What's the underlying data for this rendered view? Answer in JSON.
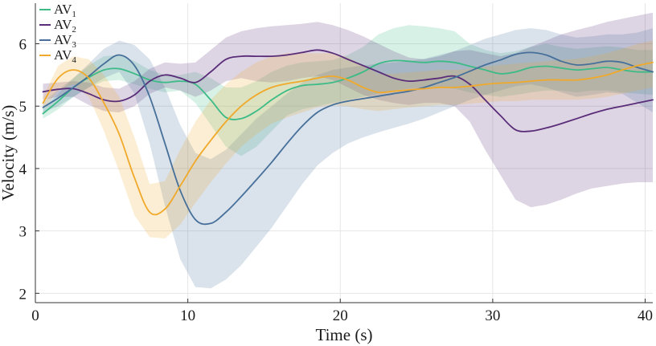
{
  "chart_data": {
    "type": "line",
    "title": "",
    "xlabel": "Time (s)",
    "ylabel": "Velocity (m/s)",
    "xlim": [
      0,
      40.5
    ],
    "ylim": [
      1.85,
      6.65
    ],
    "xticks": [
      0,
      10,
      20,
      30,
      40
    ],
    "yticks": [
      2,
      3,
      4,
      5,
      6
    ],
    "grid": true,
    "legend_position": "top-left",
    "bands": "shaded region = variability (range) around each mean trajectory",
    "series": [
      {
        "name": "AV1",
        "label_main": "AV",
        "label_sub": "1",
        "color": "#3dbb87",
        "points": [
          [
            0.5,
            4.88
          ],
          [
            1.5,
            5.08
          ],
          [
            2.5,
            5.3
          ],
          [
            3.5,
            5.46
          ],
          [
            4.5,
            5.58
          ],
          [
            5.5,
            5.6
          ],
          [
            6.5,
            5.52
          ],
          [
            7.5,
            5.42
          ],
          [
            8.5,
            5.38
          ],
          [
            9.5,
            5.4
          ],
          [
            10.5,
            5.35
          ],
          [
            11.5,
            5.1
          ],
          [
            12.5,
            4.82
          ],
          [
            13.5,
            4.8
          ],
          [
            14.5,
            4.92
          ],
          [
            15.5,
            5.1
          ],
          [
            16.5,
            5.25
          ],
          [
            17.5,
            5.33
          ],
          [
            18.5,
            5.35
          ],
          [
            19.5,
            5.38
          ],
          [
            20.5,
            5.45
          ],
          [
            21.5,
            5.55
          ],
          [
            22.5,
            5.68
          ],
          [
            23.5,
            5.73
          ],
          [
            24.5,
            5.72
          ],
          [
            25.5,
            5.7
          ],
          [
            26.5,
            5.72
          ],
          [
            27.5,
            5.7
          ],
          [
            28.5,
            5.64
          ],
          [
            29.5,
            5.58
          ],
          [
            30.5,
            5.52
          ],
          [
            31.5,
            5.55
          ],
          [
            32.5,
            5.62
          ],
          [
            33.5,
            5.64
          ],
          [
            34.5,
            5.61
          ],
          [
            35.5,
            5.58
          ],
          [
            36.5,
            5.6
          ],
          [
            37.5,
            5.62
          ],
          [
            38.5,
            5.58
          ],
          [
            39.5,
            5.55
          ],
          [
            40.5,
            5.55
          ]
        ],
        "band_lower": [
          4.8,
          4.95,
          5.15,
          5.3,
          5.4,
          5.42,
          5.35,
          5.28,
          5.22,
          5.25,
          5.05,
          4.7,
          4.35,
          4.2,
          4.35,
          4.6,
          4.85,
          4.95,
          5.0,
          5.05,
          5.1,
          5.15,
          5.2,
          5.25,
          5.28,
          5.3,
          5.3,
          5.28,
          5.22,
          5.18,
          5.15,
          5.18,
          5.22,
          5.25,
          5.25,
          5.22,
          5.25,
          5.25,
          5.22,
          5.2,
          5.18
        ],
        "band_upper": [
          4.96,
          5.2,
          5.45,
          5.65,
          5.8,
          5.82,
          5.72,
          5.58,
          5.5,
          5.5,
          5.55,
          5.45,
          5.3,
          5.3,
          5.4,
          5.55,
          5.65,
          5.7,
          5.72,
          5.74,
          5.82,
          5.95,
          6.15,
          6.25,
          6.3,
          6.28,
          6.25,
          6.2,
          6.0,
          5.9,
          5.85,
          5.88,
          5.95,
          6.0,
          5.95,
          5.92,
          5.94,
          5.96,
          5.94,
          5.9,
          5.9
        ]
      },
      {
        "name": "AV2",
        "label_main": "AV",
        "label_sub": "2",
        "color": "#5a2d79",
        "points": [
          [
            0.5,
            5.23
          ],
          [
            1.5,
            5.27
          ],
          [
            2.5,
            5.28
          ],
          [
            3.5,
            5.2
          ],
          [
            4.5,
            5.1
          ],
          [
            5.5,
            5.08
          ],
          [
            6.5,
            5.18
          ],
          [
            7.5,
            5.4
          ],
          [
            8.5,
            5.5
          ],
          [
            9.5,
            5.45
          ],
          [
            10.5,
            5.38
          ],
          [
            11.5,
            5.55
          ],
          [
            12.5,
            5.75
          ],
          [
            13.5,
            5.8
          ],
          [
            14.5,
            5.8
          ],
          [
            15.5,
            5.8
          ],
          [
            16.5,
            5.82
          ],
          [
            17.5,
            5.86
          ],
          [
            18.5,
            5.9
          ],
          [
            19.5,
            5.85
          ],
          [
            20.5,
            5.75
          ],
          [
            21.5,
            5.65
          ],
          [
            22.5,
            5.55
          ],
          [
            23.5,
            5.45
          ],
          [
            24.5,
            5.4
          ],
          [
            25.5,
            5.42
          ],
          [
            26.5,
            5.45
          ],
          [
            27.5,
            5.48
          ],
          [
            28.5,
            5.35
          ],
          [
            29.5,
            5.1
          ],
          [
            30.5,
            4.85
          ],
          [
            31.5,
            4.62
          ],
          [
            32.5,
            4.6
          ],
          [
            33.5,
            4.65
          ],
          [
            34.5,
            4.72
          ],
          [
            35.5,
            4.8
          ],
          [
            36.5,
            4.88
          ],
          [
            37.5,
            4.95
          ],
          [
            38.5,
            5.0
          ],
          [
            39.5,
            5.05
          ],
          [
            40.5,
            5.1
          ]
        ],
        "band_lower": [
          5.1,
          5.15,
          5.15,
          5.02,
          4.92,
          4.9,
          5.0,
          5.2,
          5.3,
          5.25,
          5.15,
          5.25,
          5.4,
          5.45,
          5.4,
          5.38,
          5.4,
          5.45,
          5.48,
          5.42,
          5.3,
          5.18,
          5.1,
          5.05,
          5.02,
          5.05,
          5.05,
          5.0,
          4.75,
          4.3,
          3.9,
          3.5,
          3.38,
          3.42,
          3.5,
          3.6,
          3.68,
          3.72,
          3.76,
          3.78,
          3.78
        ],
        "band_upper": [
          5.36,
          5.38,
          5.4,
          5.38,
          5.3,
          5.28,
          5.4,
          5.6,
          5.7,
          5.68,
          5.7,
          5.9,
          6.1,
          6.2,
          6.25,
          6.28,
          6.3,
          6.32,
          6.35,
          6.3,
          6.22,
          6.12,
          6.0,
          5.88,
          5.78,
          5.75,
          5.8,
          5.88,
          5.9,
          5.85,
          5.8,
          5.85,
          5.95,
          6.05,
          6.15,
          6.22,
          6.28,
          6.35,
          6.4,
          6.45,
          6.5
        ]
      },
      {
        "name": "AV3",
        "label_main": "AV",
        "label_sub": "3",
        "color": "#46709a",
        "points": [
          [
            0.5,
            4.98
          ],
          [
            1.5,
            5.13
          ],
          [
            2.5,
            5.3
          ],
          [
            3.5,
            5.48
          ],
          [
            4.5,
            5.68
          ],
          [
            5.5,
            5.82
          ],
          [
            6.5,
            5.65
          ],
          [
            7.5,
            5.15
          ],
          [
            8.5,
            4.4
          ],
          [
            9.5,
            3.65
          ],
          [
            10.5,
            3.18
          ],
          [
            11.5,
            3.12
          ],
          [
            12.5,
            3.3
          ],
          [
            13.5,
            3.55
          ],
          [
            14.5,
            3.82
          ],
          [
            15.5,
            4.1
          ],
          [
            16.5,
            4.4
          ],
          [
            17.5,
            4.68
          ],
          [
            18.5,
            4.9
          ],
          [
            19.5,
            5.02
          ],
          [
            20.5,
            5.08
          ],
          [
            21.5,
            5.12
          ],
          [
            22.5,
            5.16
          ],
          [
            23.5,
            5.2
          ],
          [
            24.5,
            5.24
          ],
          [
            25.5,
            5.3
          ],
          [
            26.5,
            5.38
          ],
          [
            27.5,
            5.46
          ],
          [
            28.5,
            5.56
          ],
          [
            29.5,
            5.66
          ],
          [
            30.5,
            5.74
          ],
          [
            31.5,
            5.83
          ],
          [
            32.5,
            5.86
          ],
          [
            33.5,
            5.82
          ],
          [
            34.5,
            5.72
          ],
          [
            35.5,
            5.66
          ],
          [
            36.5,
            5.68
          ],
          [
            37.5,
            5.72
          ],
          [
            38.5,
            5.7
          ],
          [
            39.5,
            5.62
          ],
          [
            40.5,
            5.55
          ]
        ],
        "band_lower": [
          4.9,
          5.0,
          5.15,
          5.3,
          5.45,
          5.55,
          5.2,
          4.4,
          3.4,
          2.55,
          2.1,
          2.08,
          2.22,
          2.45,
          2.75,
          3.05,
          3.4,
          3.75,
          4.05,
          4.25,
          4.4,
          4.5,
          4.58,
          4.65,
          4.72,
          4.8,
          4.9,
          5.0,
          5.1,
          5.18,
          5.25,
          5.32,
          5.35,
          5.3,
          5.22,
          5.15,
          5.18,
          5.22,
          5.2,
          5.05,
          4.9
        ],
        "band_upper": [
          5.06,
          5.26,
          5.45,
          5.68,
          5.92,
          6.05,
          5.98,
          5.75,
          5.3,
          4.7,
          4.25,
          4.15,
          4.3,
          4.55,
          4.8,
          5.0,
          5.2,
          5.38,
          5.5,
          5.58,
          5.62,
          5.65,
          5.68,
          5.7,
          5.72,
          5.76,
          5.82,
          5.88,
          5.98,
          6.08,
          6.15,
          6.22,
          6.25,
          6.22,
          6.15,
          6.1,
          6.12,
          6.15,
          6.15,
          6.18,
          6.25
        ]
      },
      {
        "name": "AV4",
        "label_main": "AV",
        "label_sub": "4",
        "color": "#f0a92a",
        "points": [
          [
            0.5,
            5.05
          ],
          [
            1.5,
            5.45
          ],
          [
            2.5,
            5.58
          ],
          [
            3.5,
            5.45
          ],
          [
            4.5,
            5.05
          ],
          [
            5.5,
            4.55
          ],
          [
            6.5,
            3.85
          ],
          [
            7.5,
            3.3
          ],
          [
            8.5,
            3.35
          ],
          [
            9.5,
            3.72
          ],
          [
            10.5,
            4.12
          ],
          [
            11.5,
            4.45
          ],
          [
            12.5,
            4.75
          ],
          [
            13.5,
            5.0
          ],
          [
            14.5,
            5.18
          ],
          [
            15.5,
            5.3
          ],
          [
            16.5,
            5.36
          ],
          [
            17.5,
            5.4
          ],
          [
            18.5,
            5.45
          ],
          [
            19.5,
            5.48
          ],
          [
            20.5,
            5.42
          ],
          [
            21.5,
            5.3
          ],
          [
            22.5,
            5.22
          ],
          [
            23.5,
            5.24
          ],
          [
            24.5,
            5.26
          ],
          [
            25.5,
            5.28
          ],
          [
            26.5,
            5.3
          ],
          [
            27.5,
            5.3
          ],
          [
            28.5,
            5.32
          ],
          [
            29.5,
            5.35
          ],
          [
            30.5,
            5.37
          ],
          [
            31.5,
            5.38
          ],
          [
            32.5,
            5.4
          ],
          [
            33.5,
            5.42
          ],
          [
            34.5,
            5.42
          ],
          [
            35.5,
            5.42
          ],
          [
            36.5,
            5.45
          ],
          [
            37.5,
            5.5
          ],
          [
            38.5,
            5.58
          ],
          [
            39.5,
            5.65
          ],
          [
            40.5,
            5.7
          ]
        ],
        "band_lower": [
          4.95,
          5.25,
          5.35,
          5.15,
          4.6,
          3.95,
          3.25,
          2.9,
          2.88,
          3.1,
          3.45,
          3.78,
          4.08,
          4.35,
          4.55,
          4.72,
          4.82,
          4.9,
          4.98,
          5.02,
          5.0,
          4.95,
          4.92,
          4.95,
          4.98,
          5.0,
          5.02,
          5.02,
          5.04,
          5.06,
          5.08,
          5.08,
          5.1,
          5.1,
          5.1,
          5.1,
          5.12,
          5.15,
          5.2,
          5.25,
          5.3
        ],
        "band_upper": [
          5.15,
          5.65,
          5.8,
          5.75,
          5.5,
          5.15,
          4.5,
          3.75,
          3.8,
          4.3,
          4.75,
          5.1,
          5.35,
          5.55,
          5.7,
          5.8,
          5.85,
          5.85,
          5.85,
          5.85,
          5.78,
          5.65,
          5.52,
          5.52,
          5.54,
          5.56,
          5.58,
          5.58,
          5.6,
          5.63,
          5.66,
          5.68,
          5.7,
          5.72,
          5.74,
          5.76,
          5.8,
          5.85,
          5.92,
          6.0,
          6.05
        ]
      }
    ]
  }
}
